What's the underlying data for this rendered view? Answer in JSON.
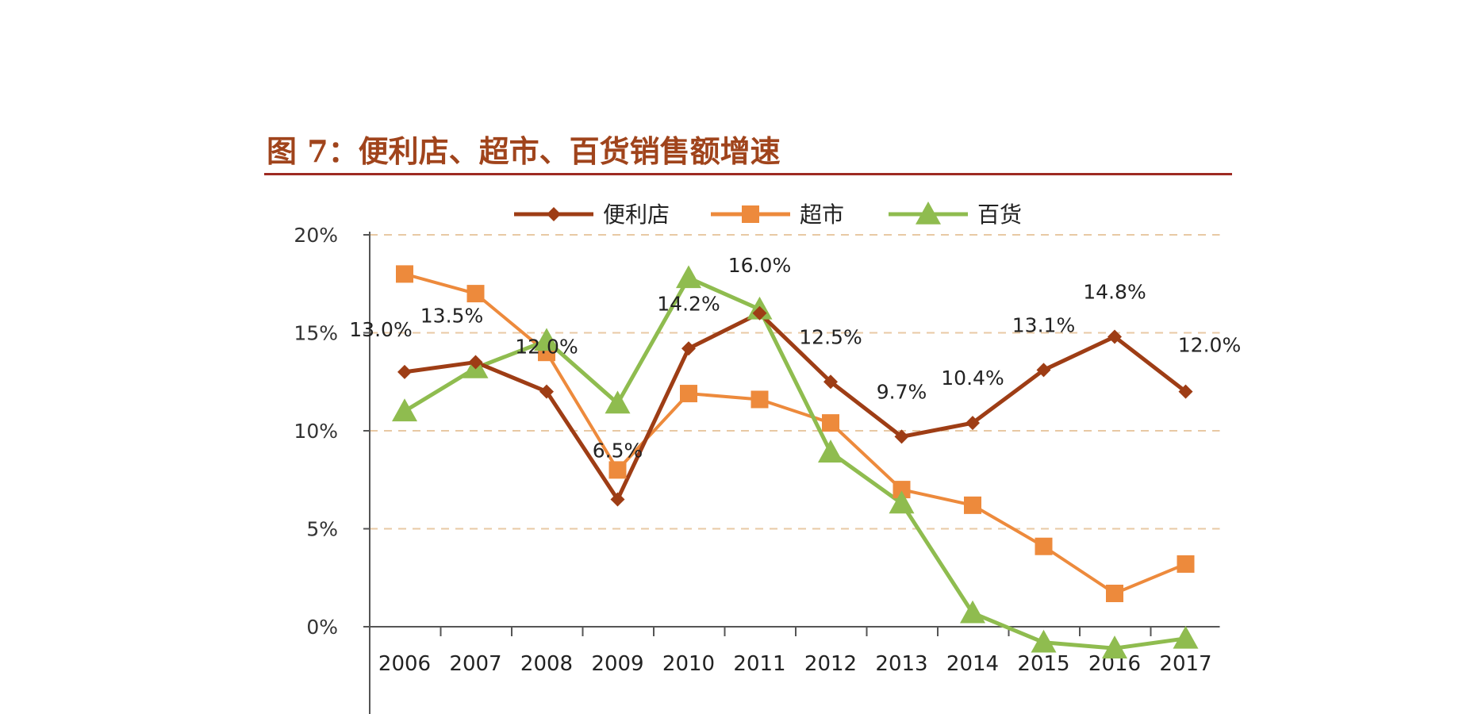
{
  "title": "图 7：便利店、超市、百货销售额增速",
  "chart_data": {
    "type": "line",
    "title": "图 7：便利店、超市、百货销售额增速",
    "categories": [
      "2006",
      "2007",
      "2008",
      "2009",
      "2010",
      "2011",
      "2012",
      "2013",
      "2014",
      "2015",
      "2016",
      "2017"
    ],
    "y_ticks": [
      "20%",
      "15%",
      "10%",
      "5%",
      "0%"
    ],
    "ylim": [
      -5,
      20
    ],
    "y_unit": "%",
    "grid": true,
    "legend": "top-center",
    "series": [
      {
        "name": "便利店",
        "color": "#9e3d15",
        "marker": "diamond",
        "values": [
          13.0,
          13.5,
          12.0,
          6.5,
          14.2,
          16.0,
          12.5,
          9.7,
          10.4,
          13.1,
          14.8,
          12.0
        ],
        "labels": [
          "13.0%",
          "13.5%",
          "12.0%",
          "6.5%",
          "14.2%",
          "16.0%",
          "12.5%",
          "9.7%",
          "10.4%",
          "13.1%",
          "14.8%",
          "12.0%"
        ]
      },
      {
        "name": "超市",
        "color": "#ed8a3c",
        "marker": "square",
        "values": [
          18.0,
          17.0,
          14.0,
          8.0,
          11.9,
          11.6,
          10.4,
          7.0,
          6.2,
          4.1,
          1.7,
          3.2
        ]
      },
      {
        "name": "百货",
        "color": "#8fbc4f",
        "marker": "triangle",
        "values": [
          11.0,
          13.2,
          14.6,
          11.4,
          17.8,
          16.2,
          8.9,
          6.3,
          0.7,
          -0.8,
          -1.1,
          -0.6
        ]
      }
    ]
  }
}
